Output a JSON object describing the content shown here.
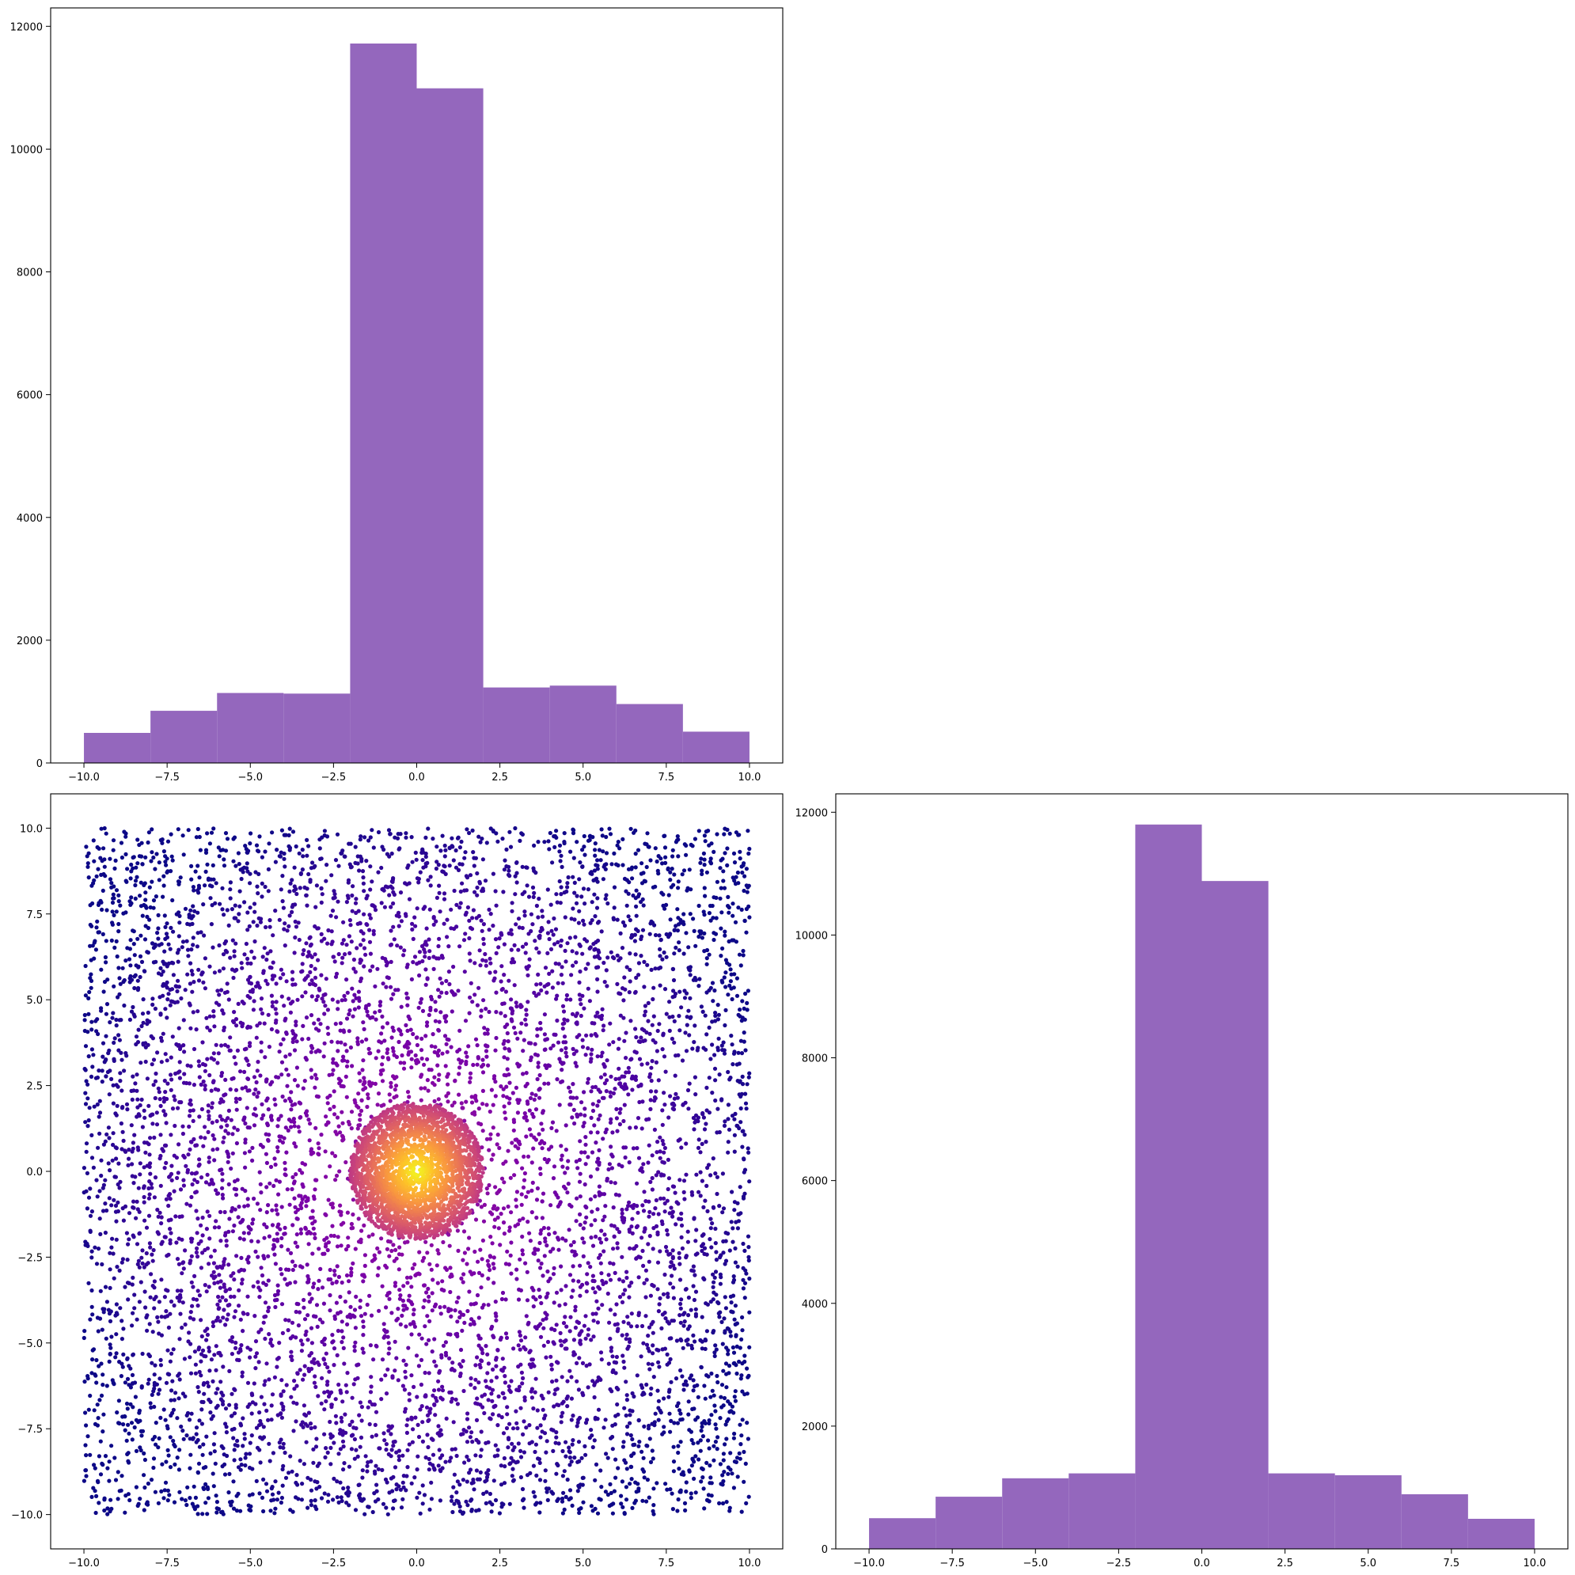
{
  "colors": {
    "hist_bar": "#9467bd",
    "scatter_cmap": "plasma",
    "axes": "#000000",
    "background": "#ffffff"
  },
  "chart_data": [
    {
      "id": "top_hist",
      "type": "bar",
      "subtype": "histogram",
      "bin_edges": [
        -10,
        -8,
        -6,
        -4,
        -2,
        0,
        2,
        4,
        6,
        8,
        10
      ],
      "values": [
        490,
        850,
        1140,
        1130,
        11720,
        10990,
        1230,
        1260,
        960,
        510
      ],
      "xlim": [
        -11,
        11
      ],
      "ylim": [
        0,
        12300
      ],
      "xticks": [
        -10.0,
        -7.5,
        -5.0,
        -2.5,
        0.0,
        2.5,
        5.0,
        7.5,
        10.0
      ],
      "xtick_labels": [
        "−10.0",
        "−7.5",
        "−5.0",
        "−2.5",
        "0.0",
        "2.5",
        "5.0",
        "7.5",
        "10.0"
      ],
      "yticks": [
        0,
        2000,
        4000,
        6000,
        8000,
        10000,
        12000
      ],
      "ytick_labels": [
        "0",
        "2000",
        "4000",
        "6000",
        "8000",
        "10000",
        "12000"
      ],
      "grid": false,
      "legend": "none"
    },
    {
      "id": "scatter",
      "type": "scatter",
      "description_of_data": "x and y uniform in [-10, 10] with a dense disc of radius ~2 around the origin; color (plasma) brightens toward the center",
      "xlim": [
        -11,
        11
      ],
      "ylim": [
        -11,
        11
      ],
      "center_disc_radius": 2,
      "xticks": [
        -10.0,
        -7.5,
        -5.0,
        -2.5,
        0.0,
        2.5,
        5.0,
        7.5,
        10.0
      ],
      "xtick_labels": [
        "−10.0",
        "−7.5",
        "−5.0",
        "−2.5",
        "0.0",
        "2.5",
        "5.0",
        "7.5",
        "10.0"
      ],
      "yticks": [
        -10.0,
        -7.5,
        -5.0,
        -2.5,
        0.0,
        2.5,
        5.0,
        7.5,
        10.0
      ],
      "ytick_labels": [
        "−10.0",
        "−7.5",
        "−5.0",
        "−2.5",
        "0.0",
        "2.5",
        "5.0",
        "7.5",
        "10.0"
      ],
      "grid": false,
      "legend": "none"
    },
    {
      "id": "right_hist",
      "type": "bar",
      "subtype": "histogram",
      "bin_edges": [
        -10,
        -8,
        -6,
        -4,
        -2,
        0,
        2,
        4,
        6,
        8,
        10
      ],
      "values": [
        500,
        850,
        1150,
        1230,
        11800,
        10880,
        1230,
        1200,
        890,
        490
      ],
      "xlim": [
        -11,
        11
      ],
      "ylim": [
        0,
        12300
      ],
      "xticks": [
        -10.0,
        -7.5,
        -5.0,
        -2.5,
        0.0,
        2.5,
        5.0,
        7.5,
        10.0
      ],
      "xtick_labels": [
        "−10.0",
        "−7.5",
        "−5.0",
        "−2.5",
        "0.0",
        "2.5",
        "5.0",
        "7.5",
        "10.0"
      ],
      "yticks": [
        0,
        2000,
        4000,
        6000,
        8000,
        10000,
        12000
      ],
      "ytick_labels": [
        "0",
        "2000",
        "4000",
        "6000",
        "8000",
        "10000",
        "12000"
      ],
      "grid": false,
      "legend": "none"
    }
  ]
}
